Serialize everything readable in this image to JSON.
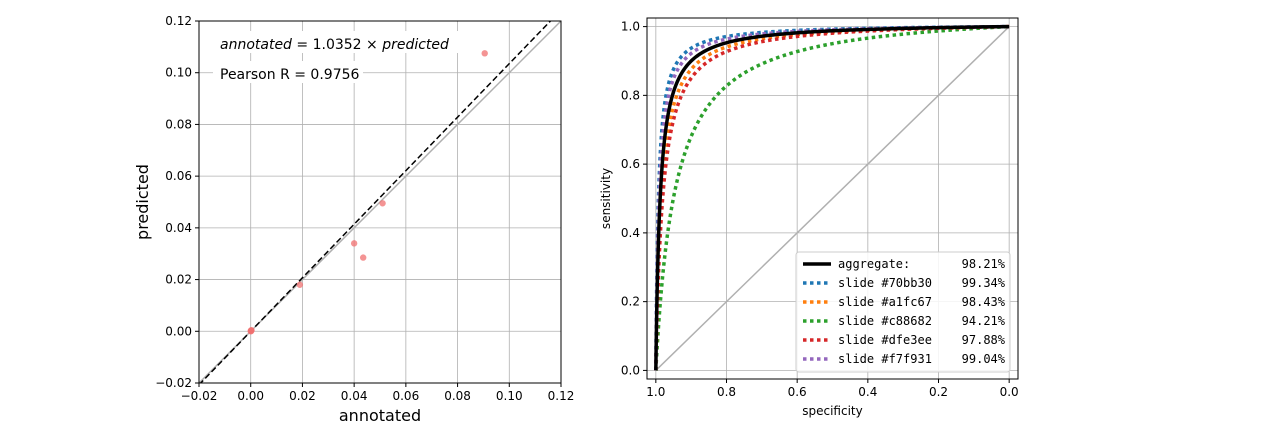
{
  "chart_data": [
    {
      "type": "scatter",
      "title": "",
      "xlabel": "annotated",
      "ylabel": "predicted",
      "xlim": [
        -0.02,
        0.12
      ],
      "ylim": [
        -0.02,
        0.12
      ],
      "xticks": [
        -0.02,
        0.0,
        0.02,
        0.04,
        0.06,
        0.08,
        0.1,
        0.12
      ],
      "yticks": [
        -0.02,
        0.0,
        0.02,
        0.04,
        0.06,
        0.08,
        0.1,
        0.12
      ],
      "xtick_labels": [
        "−0.02",
        "0.00",
        "0.02",
        "0.04",
        "0.06",
        "0.08",
        "0.10",
        "0.12"
      ],
      "ytick_labels": [
        "−0.02",
        "0.00",
        "0.02",
        "0.04",
        "0.06",
        "0.08",
        "0.10",
        "0.12"
      ],
      "grid": true,
      "annotations": {
        "fit_equation": {
          "lhs": "annotated",
          "mid": " = 1.0352 × ",
          "rhs": "predicted"
        },
        "pearson": "Pearson R = 0.9756"
      },
      "fit_slope": 1.0352,
      "points": [
        {
          "x": 0.0,
          "y": 0.0
        },
        {
          "x": 0.0001,
          "y": 0.0003
        },
        {
          "x": 0.0002,
          "y": 0.0001
        },
        {
          "x": 0.0003,
          "y": 0.0004
        },
        {
          "x": 0.019,
          "y": 0.018
        },
        {
          "x": 0.04,
          "y": 0.034
        },
        {
          "x": 0.0435,
          "y": 0.0285
        },
        {
          "x": 0.051,
          "y": 0.0495
        },
        {
          "x": 0.0905,
          "y": 0.1075
        }
      ],
      "point_color": "#f07070",
      "identity_line": true,
      "fit_line": true
    },
    {
      "type": "line",
      "title": "",
      "xlabel": "specificity",
      "ylabel": "sensitivity",
      "xlim": [
        1.0,
        0.0
      ],
      "ylim": [
        0.0,
        1.0
      ],
      "xticks": [
        1.0,
        0.8,
        0.6,
        0.4,
        0.2,
        0.0
      ],
      "yticks": [
        0.0,
        0.2,
        0.4,
        0.6,
        0.8,
        1.0
      ],
      "xtick_labels": [
        "1.0",
        "0.8",
        "0.6",
        "0.4",
        "0.2",
        "0.0"
      ],
      "ytick_labels": [
        "0.0",
        "0.2",
        "0.4",
        "0.6",
        "0.8",
        "1.0"
      ],
      "grid": true,
      "legend_position": "lower-right",
      "diagonal": true,
      "series": [
        {
          "name": "slide #70bb30",
          "auc": "99.34%",
          "color": "#1f77b4",
          "style": "dotted",
          "k": 0.0075
        },
        {
          "name": "slide #a1fc67",
          "auc": "98.43%",
          "color": "#ff7f0e",
          "style": "dotted",
          "k": 0.016
        },
        {
          "name": "slide #c88682",
          "auc": "94.21%",
          "color": "#2ca02c",
          "style": "dotted",
          "k": 0.055
        },
        {
          "name": "slide #dfe3ee",
          "auc": "97.88%",
          "color": "#d62728",
          "style": "dotted",
          "k": 0.02
        },
        {
          "name": "slide #f7f931",
          "auc": "99.04%",
          "color": "#9467bd",
          "style": "dotted",
          "k": 0.0095
        },
        {
          "name": "aggregate:",
          "auc": "98.21%",
          "color": "#000000",
          "style": "solid",
          "k": 0.0125
        }
      ],
      "legend_order": [
        5,
        0,
        1,
        2,
        3,
        4
      ]
    }
  ]
}
